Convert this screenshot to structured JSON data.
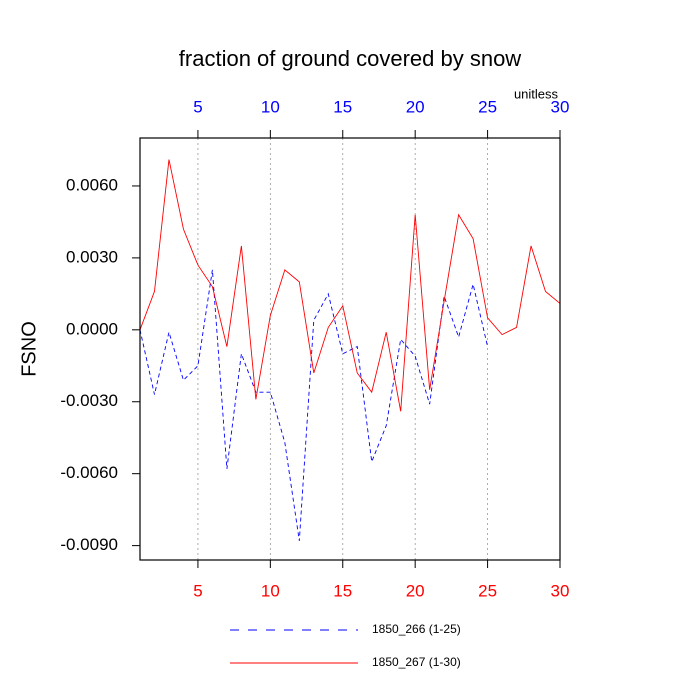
{
  "chart_data": {
    "type": "line",
    "title": "fraction of ground covered by snow",
    "ylabel": "FSNO",
    "units_label": "unitless",
    "xlim": [
      1,
      30
    ],
    "xticks": [
      5,
      10,
      15,
      20,
      25,
      30
    ],
    "bottom_tick_color": "#ff0000",
    "top_tick_color": "#0000ff",
    "ylim": [
      -0.0096,
      0.008
    ],
    "yticks": [
      {
        "value": -0.009,
        "label": "-0.0090"
      },
      {
        "value": -0.006,
        "label": "-0.0060"
      },
      {
        "value": -0.003,
        "label": "-0.0030"
      },
      {
        "value": 0,
        "label": "0.0000"
      },
      {
        "value": 0.003,
        "label": "0.0030"
      },
      {
        "value": 0.006,
        "label": "0.0060"
      }
    ],
    "grid": true,
    "legend": "bottom",
    "series": [
      {
        "name": "1850_266 (1-25)",
        "color": "#0000ff",
        "dash": true,
        "x": [
          1,
          2,
          3,
          4,
          5,
          6,
          7,
          8,
          9,
          10,
          11,
          12,
          13,
          14,
          15,
          16,
          17,
          18,
          19,
          20,
          21,
          22,
          23,
          24,
          25
        ],
        "values": [
          0.0,
          -0.0027,
          -0.0001,
          -0.0021,
          -0.0015,
          0.0025,
          -0.0058,
          -0.001,
          -0.0026,
          -0.0026,
          -0.0047,
          -0.0088,
          0.0004,
          0.0015,
          -0.001,
          -0.0007,
          -0.0055,
          -0.004,
          -0.0004,
          -0.0011,
          -0.0031,
          0.0014,
          -0.0003,
          0.0019,
          -0.0007
        ]
      },
      {
        "name": "1850_267 (1-30)",
        "color": "#ff0000",
        "dash": false,
        "x": [
          1,
          2,
          3,
          4,
          5,
          6,
          7,
          8,
          9,
          10,
          11,
          12,
          13,
          14,
          15,
          16,
          17,
          18,
          19,
          20,
          21,
          22,
          23,
          24,
          25,
          26,
          27,
          28,
          29,
          30
        ],
        "values": [
          0.0,
          0.0016,
          0.0071,
          0.0042,
          0.0027,
          0.0018,
          -0.0007,
          0.0035,
          -0.0029,
          0.0006,
          0.0025,
          0.002,
          -0.0018,
          0.0001,
          0.001,
          -0.0018,
          -0.0026,
          -0.0001,
          -0.0034,
          0.0048,
          -0.0025,
          0.0012,
          0.0048,
          0.0038,
          0.0005,
          -0.0002,
          0.0001,
          0.0035,
          0.0016,
          0.0011
        ]
      }
    ]
  }
}
